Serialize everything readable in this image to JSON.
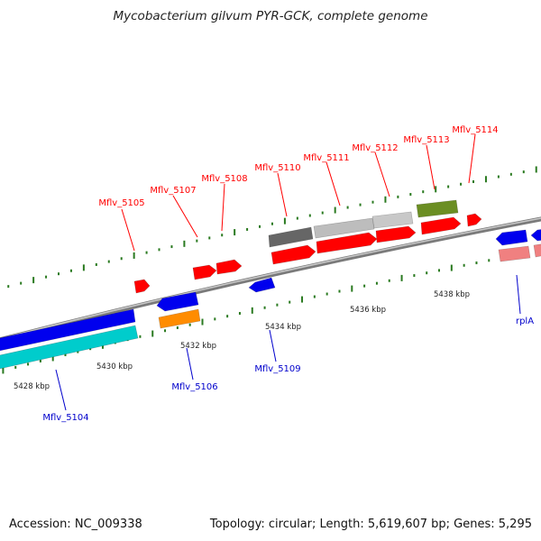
{
  "title": "Mycobacterium gilvum PYR-GCK, complete genome",
  "accession": "Accession: NC_009338",
  "topology": "Topology: circular; Length: 5,619,607 bp; Genes: 5,295",
  "colors": {
    "forward_label": "#ff0000",
    "reverse_label": "#0000cc",
    "backbone": "#8a8a8a",
    "tick_major": "#2a7a20",
    "tick_minor": "#2a7a20"
  },
  "scale_ticks": [
    "5428 kbp",
    "5430 kbp",
    "5432 kbp",
    "5434 kbp",
    "5436 kbp",
    "5438 kbp"
  ],
  "forward_labels": [
    "Mflv_5105",
    "Mflv_5107",
    "Mflv_5108",
    "Mflv_5110",
    "Mflv_5111",
    "Mflv_5112",
    "Mflv_5113",
    "Mflv_5114"
  ],
  "reverse_labels": [
    "Mflv_5104",
    "Mflv_5106",
    "Mflv_5109",
    "rplA"
  ],
  "features": {
    "forward": [
      {
        "color": "#ff0000"
      },
      {
        "color": "#ff0000"
      },
      {
        "color": "#ff0000"
      },
      {
        "color": "#ff0000"
      },
      {
        "color": "#ff0000"
      },
      {
        "color": "#ff0000"
      },
      {
        "color": "#ff0000"
      },
      {
        "color": "#ff0000"
      },
      {
        "color": "#666666"
      },
      {
        "color": "#bdbdbd"
      },
      {
        "color": "#c8c8c8"
      },
      {
        "color": "#6b8e23"
      }
    ],
    "reverse": [
      {
        "color": "#0000ee"
      },
      {
        "color": "#00cccc"
      },
      {
        "color": "#0000ee"
      },
      {
        "color": "#ff8c00"
      },
      {
        "color": "#0000ee"
      },
      {
        "color": "#0000ee"
      },
      {
        "color": "#0000ee"
      },
      {
        "color": "#f08080"
      },
      {
        "color": "#f08080"
      }
    ]
  }
}
